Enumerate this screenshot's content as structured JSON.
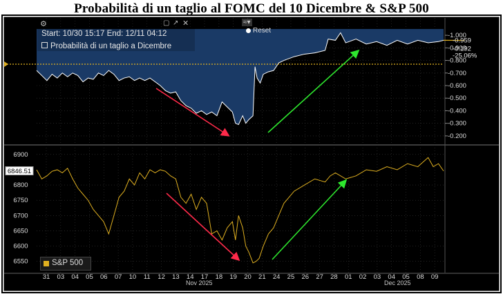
{
  "title": "Probabilità di un taglio al FOMC del 10 Dicembre & S&P 500",
  "info_panel": {
    "range_text": "Start: 10/30 15:17 End: 12/11 04:12",
    "series_label": "Probabilità di un taglio a Dicembre"
  },
  "toolbar": {
    "reset_label": "Reset"
  },
  "colors": {
    "background": "#000000",
    "probability_fill": "#1a3a66",
    "probability_line": "#ffffff",
    "spx_line": "#e0b020",
    "reference_line": "#e0b020",
    "down_arrow": "#ff2a4a",
    "up_arrow": "#2ee82e",
    "grid": "#3a3a3a"
  },
  "chart_data": [
    {
      "type": "area",
      "name": "Probabilità di un taglio a Dicembre",
      "ylim": [
        0.15,
        1.05
      ],
      "yticks": [
        "1.000",
        "0.900",
        "0.800",
        "0.700",
        "0.600",
        "0.500",
        "0.400",
        "0.300",
        "0.200"
      ],
      "reference_value": 0.77,
      "current_labels": [
        "0.959",
        "0.192",
        "25.06%"
      ],
      "points": [
        [
          0,
          0.72
        ],
        [
          0.5,
          0.68
        ],
        [
          1,
          0.64
        ],
        [
          1.5,
          0.69
        ],
        [
          2,
          0.66
        ],
        [
          2.5,
          0.7
        ],
        [
          3,
          0.67
        ],
        [
          3.5,
          0.7
        ],
        [
          4,
          0.68
        ],
        [
          4.5,
          0.63
        ],
        [
          5,
          0.66
        ],
        [
          5.5,
          0.65
        ],
        [
          6,
          0.7
        ],
        [
          6.5,
          0.68
        ],
        [
          7,
          0.72
        ],
        [
          7.5,
          0.69
        ],
        [
          8,
          0.64
        ],
        [
          8.5,
          0.66
        ],
        [
          9,
          0.67
        ],
        [
          9.5,
          0.64
        ],
        [
          10,
          0.66
        ],
        [
          10.5,
          0.64
        ],
        [
          11,
          0.66
        ],
        [
          11.5,
          0.63
        ],
        [
          12,
          0.6
        ],
        [
          12.5,
          0.56
        ],
        [
          13,
          0.54
        ],
        [
          13.5,
          0.55
        ],
        [
          14,
          0.48
        ],
        [
          14.5,
          0.44
        ],
        [
          15,
          0.42
        ],
        [
          15.5,
          0.38
        ],
        [
          16,
          0.4
        ],
        [
          16.5,
          0.37
        ],
        [
          17,
          0.39
        ],
        [
          17.5,
          0.36
        ],
        [
          18,
          0.47
        ],
        [
          18.5,
          0.43
        ],
        [
          19,
          0.39
        ],
        [
          19.3,
          0.3
        ],
        [
          19.6,
          0.29
        ],
        [
          20,
          0.36
        ],
        [
          20.3,
          0.3
        ],
        [
          20.6,
          0.33
        ],
        [
          21,
          0.36
        ],
        [
          21.2,
          0.75
        ],
        [
          21.4,
          0.66
        ],
        [
          21.7,
          0.62
        ],
        [
          22,
          0.69
        ],
        [
          22.5,
          0.71
        ],
        [
          23,
          0.72
        ],
        [
          23.5,
          0.78
        ],
        [
          24,
          0.8
        ],
        [
          25,
          0.83
        ],
        [
          26,
          0.85
        ],
        [
          27,
          0.86
        ],
        [
          28,
          0.88
        ],
        [
          28.3,
          0.97
        ],
        [
          29,
          0.96
        ],
        [
          29.5,
          1.02
        ],
        [
          30,
          0.94
        ],
        [
          31,
          0.97
        ],
        [
          32,
          0.93
        ],
        [
          33,
          0.95
        ],
        [
          34,
          0.92
        ],
        [
          35,
          0.96
        ],
        [
          36,
          0.93
        ],
        [
          37,
          0.96
        ],
        [
          38,
          0.94
        ],
        [
          39,
          0.95
        ],
        [
          39.5,
          0.96
        ]
      ]
    },
    {
      "type": "line",
      "name": "S&P 500",
      "ylim": [
        6520,
        6920
      ],
      "yticks": [
        "6900",
        "6800",
        "6750",
        "6700",
        "6650",
        "6600",
        "6550"
      ],
      "current_label": "6846.51",
      "xlabel_month_left": "Nov 2025",
      "xlabel_month_right": "Dec 2025",
      "x_tick_labels": [
        "31",
        "03",
        "04",
        "05",
        "06",
        "07",
        "10",
        "11",
        "12",
        "13",
        "14",
        "17",
        "18",
        "19",
        "20",
        "21",
        "24",
        "25",
        "26",
        "27",
        "28",
        "01",
        "02",
        "03",
        "04",
        "05",
        "08",
        "09"
      ],
      "points": [
        [
          0,
          6850
        ],
        [
          0.5,
          6820
        ],
        [
          1,
          6830
        ],
        [
          1.5,
          6845
        ],
        [
          2,
          6850
        ],
        [
          2.5,
          6840
        ],
        [
          3,
          6855
        ],
        [
          3.5,
          6820
        ],
        [
          4,
          6790
        ],
        [
          4.5,
          6770
        ],
        [
          5,
          6750
        ],
        [
          5.5,
          6720
        ],
        [
          6,
          6700
        ],
        [
          6.5,
          6680
        ],
        [
          7,
          6640
        ],
        [
          7.5,
          6700
        ],
        [
          8,
          6760
        ],
        [
          8.5,
          6780
        ],
        [
          9,
          6820
        ],
        [
          9.5,
          6800
        ],
        [
          10,
          6840
        ],
        [
          10.5,
          6820
        ],
        [
          11,
          6850
        ],
        [
          11.5,
          6840
        ],
        [
          12,
          6850
        ],
        [
          12.5,
          6845
        ],
        [
          13,
          6830
        ],
        [
          13.5,
          6820
        ],
        [
          14,
          6760
        ],
        [
          14.5,
          6740
        ],
        [
          15,
          6770
        ],
        [
          15.5,
          6720
        ],
        [
          16,
          6760
        ],
        [
          16.5,
          6740
        ],
        [
          17,
          6640
        ],
        [
          17.5,
          6650
        ],
        [
          18,
          6620
        ],
        [
          18.5,
          6660
        ],
        [
          19,
          6680
        ],
        [
          19.3,
          6620
        ],
        [
          19.6,
          6700
        ],
        [
          20,
          6660
        ],
        [
          20.3,
          6600
        ],
        [
          20.6,
          6580
        ],
        [
          21,
          6545
        ],
        [
          21.3,
          6550
        ],
        [
          21.6,
          6560
        ],
        [
          22,
          6600
        ],
        [
          22.5,
          6640
        ],
        [
          23,
          6660
        ],
        [
          23.5,
          6700
        ],
        [
          24,
          6740
        ],
        [
          25,
          6780
        ],
        [
          26,
          6800
        ],
        [
          27,
          6820
        ],
        [
          28,
          6810
        ],
        [
          28.5,
          6830
        ],
        [
          29,
          6840
        ],
        [
          30,
          6820
        ],
        [
          31,
          6830
        ],
        [
          32,
          6850
        ],
        [
          33,
          6845
        ],
        [
          34,
          6860
        ],
        [
          35,
          6850
        ],
        [
          36,
          6870
        ],
        [
          37,
          6860
        ],
        [
          38,
          6890
        ],
        [
          38.5,
          6860
        ],
        [
          39,
          6870
        ],
        [
          39.5,
          6846
        ]
      ],
      "legend": "S&P 500"
    }
  ]
}
